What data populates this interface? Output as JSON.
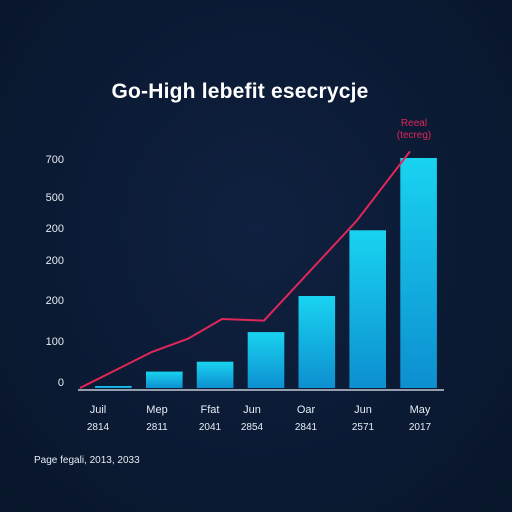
{
  "chart_data": {
    "type": "bar",
    "title": "Go-High lebefit esecrycje",
    "categories": [
      "Juil 2814",
      "Mep 2811",
      "Ffat 2041",
      "Jun 2854",
      "Oar 2841",
      "Jun 2571",
      "May 2017"
    ],
    "x_tick_top": [
      "Juil",
      "Mep",
      "Ffat",
      "Jun",
      "Oar",
      "Jun",
      "May"
    ],
    "x_tick_bottom": [
      "2814",
      "2811",
      "2041",
      "2854",
      "2841",
      "2571",
      "2017"
    ],
    "y_tick_labels": [
      "0",
      "100",
      "200",
      "200",
      "200",
      "500",
      "700"
    ],
    "series": [
      {
        "type": "bar",
        "values": [
          5,
          50,
          80,
          170,
          280,
          480,
          700
        ],
        "color": "#18c6e8"
      },
      {
        "type": "line",
        "name": "Reeal (tecreg)",
        "values": [
          0,
          110,
          150,
          210,
          205,
          510,
          720
        ],
        "color": "#e0265a"
      }
    ],
    "ylim": [
      0,
      700
    ],
    "grid": false,
    "legend": "top-right"
  },
  "legend_text": {
    "line1": "Reeal",
    "line2": "(tecreg)"
  },
  "footer": "Page fegali, 2013, 2033"
}
